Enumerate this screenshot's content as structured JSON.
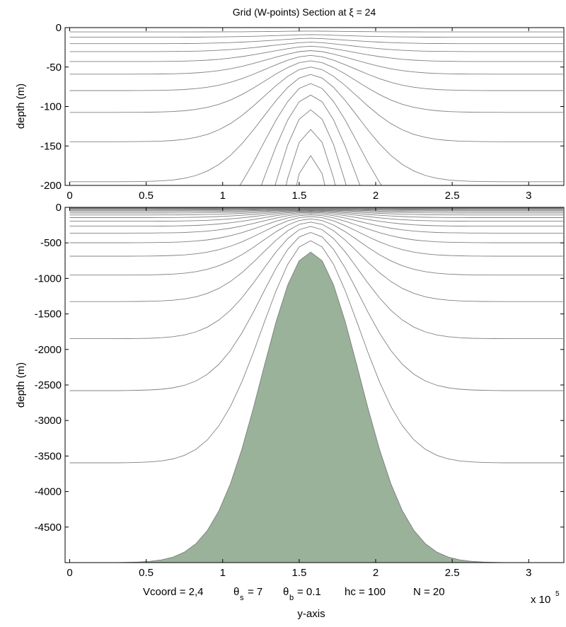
{
  "chart_data": [
    {
      "type": "line",
      "panel": "top",
      "title": "Grid (W-points) Section at   ξ = 24",
      "ylabel": "depth  (m)",
      "xlabel": "",
      "ylim": [
        -200,
        0
      ],
      "xlim": [
        -0.03,
        3.23
      ],
      "x_ticks": [
        "0",
        "0.5",
        "1",
        "1.5",
        "2",
        "2.5",
        "3"
      ],
      "y_ticks": [
        "0",
        "-50",
        "-100",
        "-150",
        "-200"
      ],
      "y_tick_values": [
        0,
        -50,
        -100,
        -150,
        -200
      ],
      "grid": false
    },
    {
      "type": "area",
      "panel": "bottom",
      "ylabel": "depth  (m)",
      "xlabel": "y-axis",
      "x_multiplier": "x 10",
      "x_multiplier_exp": "5",
      "ylim": [
        -5000,
        0
      ],
      "xlim": [
        -0.03,
        3.23
      ],
      "x_ticks": [
        "0",
        "0.5",
        "1",
        "1.5",
        "2",
        "2.5",
        "3"
      ],
      "y_ticks": [
        "0",
        "-500",
        "-1000",
        "-1500",
        "-2000",
        "-2500",
        "-3000",
        "-3500",
        "-4000",
        "-4500"
      ],
      "y_tick_values": [
        0,
        -500,
        -1000,
        -1500,
        -2000,
        -2500,
        -3000,
        -3500,
        -4000,
        -4500
      ],
      "grid": false,
      "params_text": {
        "vcoord": "Vcoord = 2,4",
        "theta_s": "= 7",
        "theta_b": "= 0.1",
        "hc": "hc  = 100",
        "N": "N = 20"
      },
      "params": {
        "Vtransform": 2,
        "Vstretching": 4,
        "theta_s": 7,
        "theta_b": 0.1,
        "hc": 100,
        "N": 20
      },
      "y": [
        0,
        0.075,
        0.15,
        0.225,
        0.3,
        0.375,
        0.45,
        0.525,
        0.6,
        0.675,
        0.75,
        0.825,
        0.9,
        0.975,
        1.05,
        1.125,
        1.2,
        1.275,
        1.35,
        1.425,
        1.5,
        1.575,
        1.65,
        1.725,
        1.8,
        1.875,
        1.95,
        2.025,
        2.1,
        2.175,
        2.25,
        2.325,
        2.4,
        2.475,
        2.55,
        2.625,
        2.7,
        2.775,
        2.85,
        2.925,
        3.0,
        3.075,
        3.15,
        3.225
      ],
      "bathymetry_h": [
        5000,
        5000,
        5000,
        5000,
        5000,
        4997,
        4992,
        4982,
        4962,
        4923,
        4853,
        4735,
        4549,
        4273,
        3893,
        3407,
        2832,
        2209,
        1605,
        1094,
        751,
        630,
        751,
        1094,
        1605,
        2209,
        2832,
        3407,
        3893,
        4273,
        4549,
        4735,
        4853,
        4923,
        4962,
        4982,
        4992,
        4997,
        5000,
        5000,
        5000,
        5000,
        5000,
        5000
      ]
    }
  ],
  "colors": {
    "grid_lines": "#808080",
    "land_fill": "#9ab29a",
    "axes": "#000000"
  }
}
